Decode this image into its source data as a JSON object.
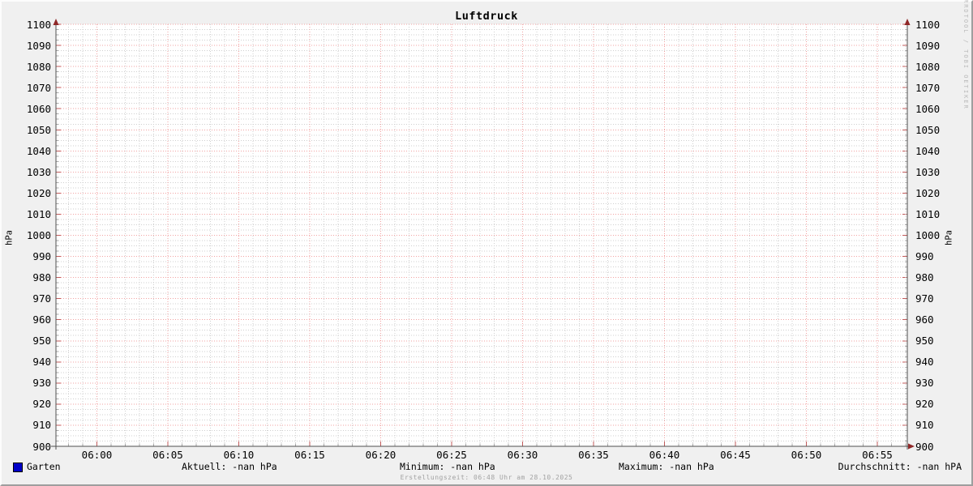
{
  "title": "Luftdruck",
  "watermark": "RRDTOOL / TOBI OETIKER",
  "footer": "Erstellungszeit: 06:48 Uhr am 28.10.2025",
  "axes": {
    "left_unit": "hPa",
    "right_unit": "hPa",
    "y_tick_labels": [
      "1100",
      "1090",
      "1080",
      "1070",
      "1060",
      "1050",
      "1040",
      "1030",
      "1020",
      "1010",
      "1000",
      "990",
      "980",
      "970",
      "960",
      "950",
      "940",
      "930",
      "920",
      "910",
      "900"
    ],
    "x_tick_labels": [
      "06:00",
      "06:05",
      "06:10",
      "06:15",
      "06:20",
      "06:25",
      "06:30",
      "06:35",
      "06:40",
      "06:45",
      "06:50",
      "06:55"
    ]
  },
  "legend": {
    "series_label": "Garten",
    "swatch_color": "#0000c8"
  },
  "stats": {
    "aktuell": "Aktuell: -nan hPa",
    "minimum": "Minimum: -nan hPa",
    "maximum": "Maximum: -nan hPa",
    "durchschnitt": "Durchschnitt: -nan hPA"
  },
  "colors": {
    "background": "#f0f0f0",
    "canvas": "#ffffff",
    "major_grid": "#f2a2a2",
    "minor_grid": "#cfcfcf",
    "major_tick": "#c05a5a",
    "minor_tick": "#aaaaaa",
    "axis": "#4f4f4f",
    "arrow": "#8f2727",
    "series": "#0000c8"
  },
  "chart_data": {
    "type": "line",
    "title": "Luftdruck",
    "ylabel": "hPa",
    "ylabel_right": "hPa",
    "ylim": [
      900,
      1100
    ],
    "y_major_step": 10,
    "y_minor_step": 2.5,
    "x_tick_labels": [
      "06:00",
      "06:05",
      "06:10",
      "06:15",
      "06:20",
      "06:25",
      "06:30",
      "06:35",
      "06:40",
      "06:45",
      "06:50",
      "06:55"
    ],
    "x_minor_step_minutes": 1,
    "grid": true,
    "legend_position": "bottom-left",
    "series": [
      {
        "name": "Garten",
        "color": "#0000c8",
        "values": [],
        "all_values_nan": true
      }
    ],
    "stats": {
      "aktuell": "-nan hPa",
      "minimum": "-nan hPa",
      "maximum": "-nan hPa",
      "durchschnitt": "-nan hPA"
    }
  }
}
